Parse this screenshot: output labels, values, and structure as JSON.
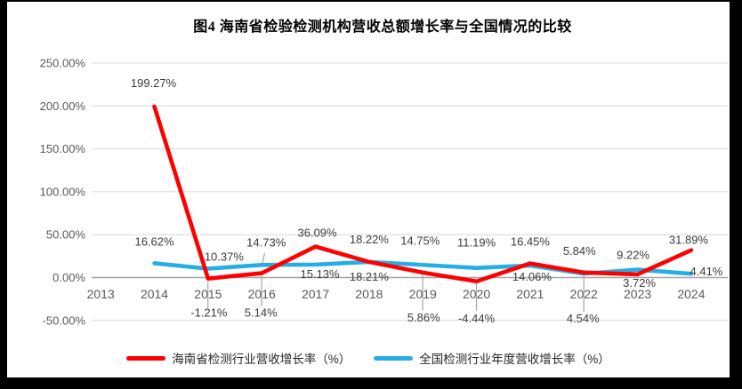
{
  "window": {
    "frame_color": "#000000",
    "canvas_color": "#ffffff"
  },
  "chart_data": {
    "type": "line",
    "title": "图4 海南省检验检测机构营收总额增长率与全国情况的比较",
    "categories": [
      "2013",
      "2014",
      "2015",
      "2016",
      "2017",
      "2018",
      "2019",
      "2020",
      "2021",
      "2022",
      "2023",
      "2024"
    ],
    "ylim": [
      -50,
      250
    ],
    "ytick_step": 50,
    "ytick_suffix": "%",
    "grid": true,
    "legend_position": "bottom",
    "grid_color": "#d9d9d9",
    "axis_color": "#a6a6a6",
    "leader_color": "#a6a6a6",
    "tick_label_color": "#595959",
    "data_label_color": "#3b3b3b",
    "series": [
      {
        "name": "海南省检测行业营收增长率（%）",
        "color": "#fe0000",
        "values": [
          null,
          199.27,
          -1.21,
          5.14,
          36.09,
          18.22,
          5.86,
          -4.44,
          16.45,
          5.84,
          3.72,
          31.89
        ],
        "label_offsets": [
          null,
          [
            -1,
            -22
          ],
          [
            1,
            43
          ],
          [
            -1,
            49
          ],
          [
            2,
            -11
          ],
          [
            0,
            -21
          ],
          [
            1,
            55
          ],
          [
            0,
            46
          ],
          [
            0,
            -20
          ],
          [
            -5,
            -20
          ],
          [
            2,
            14
          ],
          [
            -3,
            -7
          ]
        ]
      },
      {
        "name": "全国检测行业年度营收增长率（%）",
        "color": "#25aee6",
        "values": [
          null,
          16.62,
          10.37,
          14.73,
          15.13,
          18.21,
          14.75,
          11.19,
          14.06,
          4.54,
          9.22,
          4.41
        ],
        "label_offsets": [
          null,
          [
            0,
            -20
          ],
          [
            18,
            -9
          ],
          [
            5,
            -21
          ],
          [
            5,
            15
          ],
          [
            0,
            21
          ],
          [
            -3,
            -23
          ],
          [
            0,
            -24
          ],
          [
            2,
            17
          ],
          [
            -1,
            55
          ],
          [
            -5,
            -12
          ],
          [
            17,
            2
          ]
        ]
      }
    ],
    "leader_lines": [
      [
        233.7,
        317,
        233.7,
        347
      ],
      [
        294.1,
        310,
        294.1,
        345
      ],
      [
        297.5,
        285,
        294.8,
        297
      ],
      [
        475.1,
        308,
        475.1,
        349
      ],
      [
        535.5,
        318,
        535.5,
        350
      ],
      [
        656.2,
        310,
        656.2,
        351
      ]
    ]
  }
}
